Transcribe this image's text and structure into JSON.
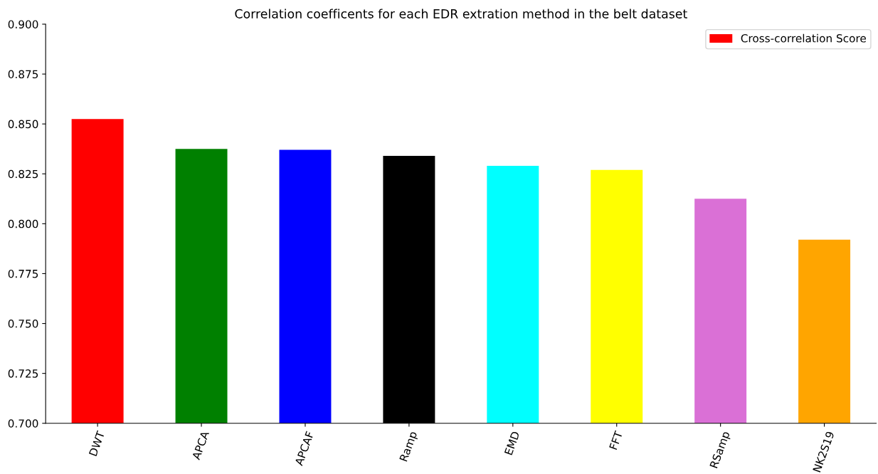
{
  "chart_data": {
    "type": "bar",
    "title": "Correlation coefficents for each EDR extration method in the belt dataset",
    "categories": [
      "DWT",
      "APCA",
      "APCAF",
      "Ramp",
      "EMD",
      "FFT",
      "RSamp",
      "NK2S19"
    ],
    "series": [
      {
        "name": "Cross-correlation Score",
        "values": [
          0.8525,
          0.8375,
          0.837,
          0.834,
          0.829,
          0.827,
          0.8125,
          0.792
        ]
      }
    ],
    "colors": [
      "#ff0000",
      "#008000",
      "#0000ff",
      "#000000",
      "#00ffff",
      "#ffff00",
      "#da70d6",
      "#ffa500"
    ],
    "ylim": [
      0.7,
      0.9
    ],
    "yticks": [
      {
        "value": 0.7,
        "label": "0.700"
      },
      {
        "value": 0.725,
        "label": "0.725"
      },
      {
        "value": 0.75,
        "label": "0.750"
      },
      {
        "value": 0.775,
        "label": "0.775"
      },
      {
        "value": 0.8,
        "label": "0.800"
      },
      {
        "value": 0.825,
        "label": "0.825"
      },
      {
        "value": 0.85,
        "label": "0.850"
      },
      {
        "value": 0.875,
        "label": "0.875"
      },
      {
        "value": 0.9,
        "label": "0.900"
      }
    ],
    "grid": false,
    "legend": "top right"
  }
}
